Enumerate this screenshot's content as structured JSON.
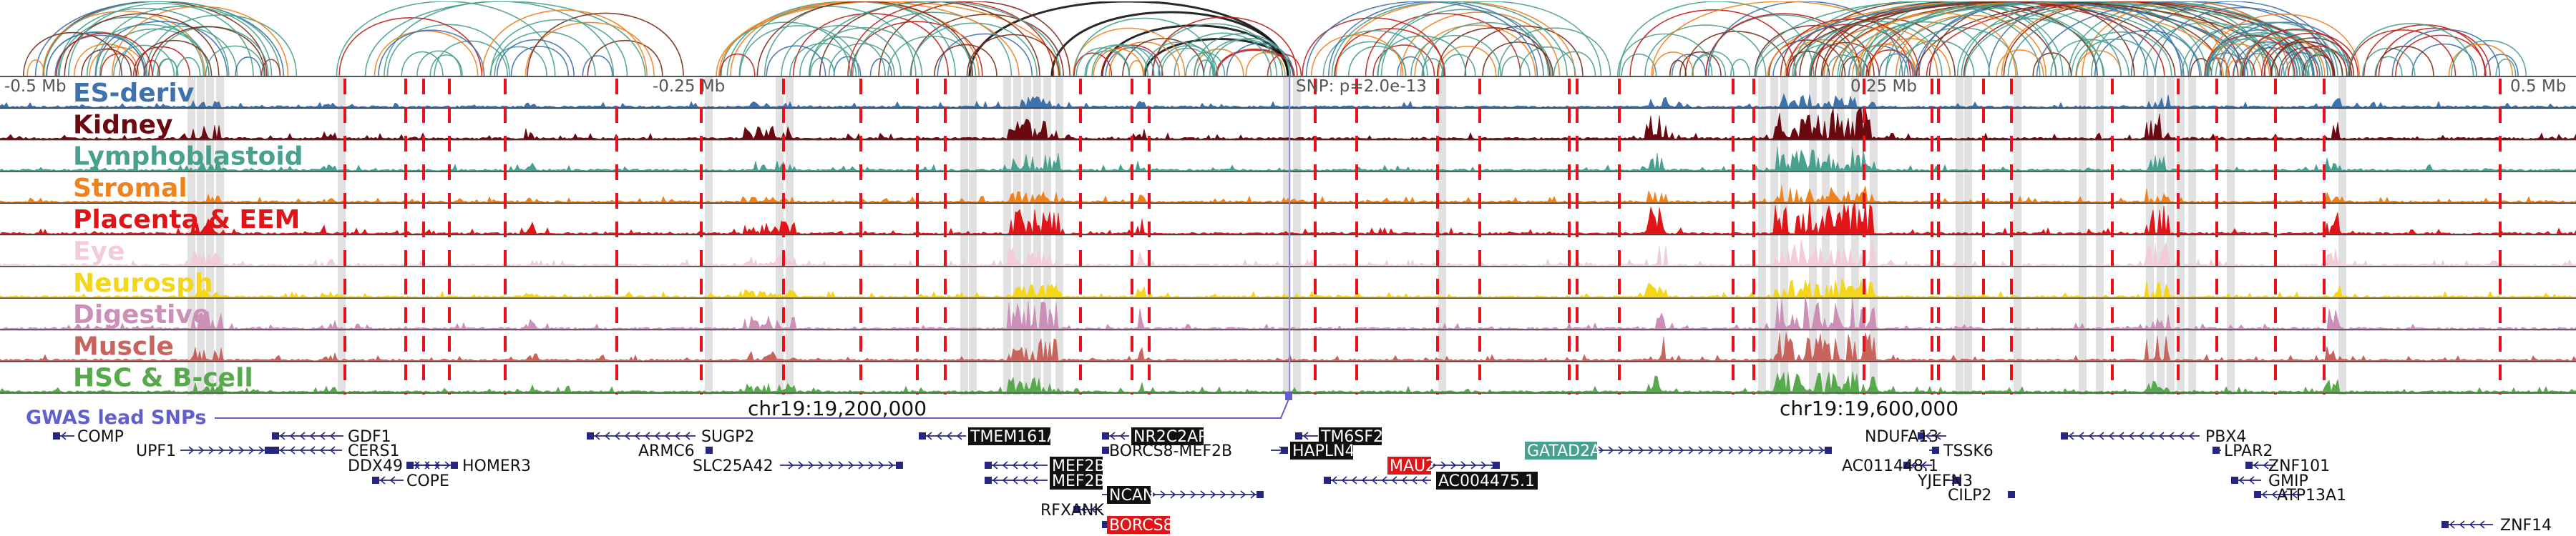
{
  "header": {
    "coord_left": "-0.5 Mb",
    "coord_mid_left": "-0.25 Mb",
    "snp_label": "SNP: p=2.0e-13",
    "coord_mid_right": "0.25 Mb",
    "coord_right": "0.5 Mb"
  },
  "tracks": [
    {
      "name": "ES-deriv",
      "color": "#3e72ac"
    },
    {
      "name": "Kidney",
      "color": "#6a0a10"
    },
    {
      "name": "Lymphoblastoid",
      "color": "#48a08e"
    },
    {
      "name": "Stromal",
      "color": "#f0821e"
    },
    {
      "name": "Placenta & EEM",
      "color": "#e11418"
    },
    {
      "name": "Eye",
      "color": "#f2cdd8"
    },
    {
      "name": "Neurosph",
      "color": "#f4d61a"
    },
    {
      "name": "Digestive",
      "color": "#cc8fb8"
    },
    {
      "name": "Muscle",
      "color": "#c8645e"
    },
    {
      "name": "HSC & B-cell",
      "color": "#58a84e"
    }
  ],
  "gwas_label": "GWAS lead SNPs",
  "chrom_labels": [
    "chr19:19,200,000",
    "chr19:19,600,000"
  ],
  "genes": [
    {
      "name": "COMP",
      "style": "plain"
    },
    {
      "name": "UPF1",
      "style": "plain"
    },
    {
      "name": "GDF1",
      "style": "plain"
    },
    {
      "name": "CERS1",
      "style": "plain"
    },
    {
      "name": "DDX49",
      "style": "plain"
    },
    {
      "name": "HOMER3",
      "style": "plain"
    },
    {
      "name": "COPE",
      "style": "plain"
    },
    {
      "name": "SUGP2",
      "style": "plain"
    },
    {
      "name": "ARMC6",
      "style": "plain"
    },
    {
      "name": "SLC25A42",
      "style": "plain"
    },
    {
      "name": "TMEM161A",
      "style": "black"
    },
    {
      "name": "MEF2B",
      "style": "black"
    },
    {
      "name": "MEF2B",
      "style": "black"
    },
    {
      "name": "RFXANK",
      "style": "plain"
    },
    {
      "name": "NR2C2AP",
      "style": "black"
    },
    {
      "name": "BORCS8-MEF2B",
      "style": "plain"
    },
    {
      "name": "NCAN",
      "style": "black"
    },
    {
      "name": "BORCS8",
      "style": "red"
    },
    {
      "name": "TM6SF2",
      "style": "black"
    },
    {
      "name": "HAPLN4",
      "style": "black"
    },
    {
      "name": "MAU2",
      "style": "red"
    },
    {
      "name": "AC004475.1",
      "style": "black"
    },
    {
      "name": "GATAD2A",
      "style": "teal"
    },
    {
      "name": "NDUFA13",
      "style": "plain"
    },
    {
      "name": "TSSK6",
      "style": "plain"
    },
    {
      "name": "AC011448.1",
      "style": "plain"
    },
    {
      "name": "YJEFN3",
      "style": "plain"
    },
    {
      "name": "CILP2",
      "style": "plain"
    },
    {
      "name": "PBX4",
      "style": "plain"
    },
    {
      "name": "LPAR2",
      "style": "plain"
    },
    {
      "name": "ZNF101",
      "style": "plain"
    },
    {
      "name": "GMIP",
      "style": "plain"
    },
    {
      "name": "ATP13A1",
      "style": "plain"
    },
    {
      "name": "ZNF14",
      "style": "plain"
    }
  ],
  "colors": {
    "loop_black": "#111111",
    "loop_teal": "#48a08e",
    "loop_orange": "#f0821e",
    "loop_red": "#c0201a",
    "loop_brown": "#7a2a18",
    "loop_blue": "#3e72ac",
    "dashed_line": "#e8101a",
    "highlight_band": "#dcdcdc",
    "gwas": "#6060c8",
    "gene": "#262680"
  }
}
